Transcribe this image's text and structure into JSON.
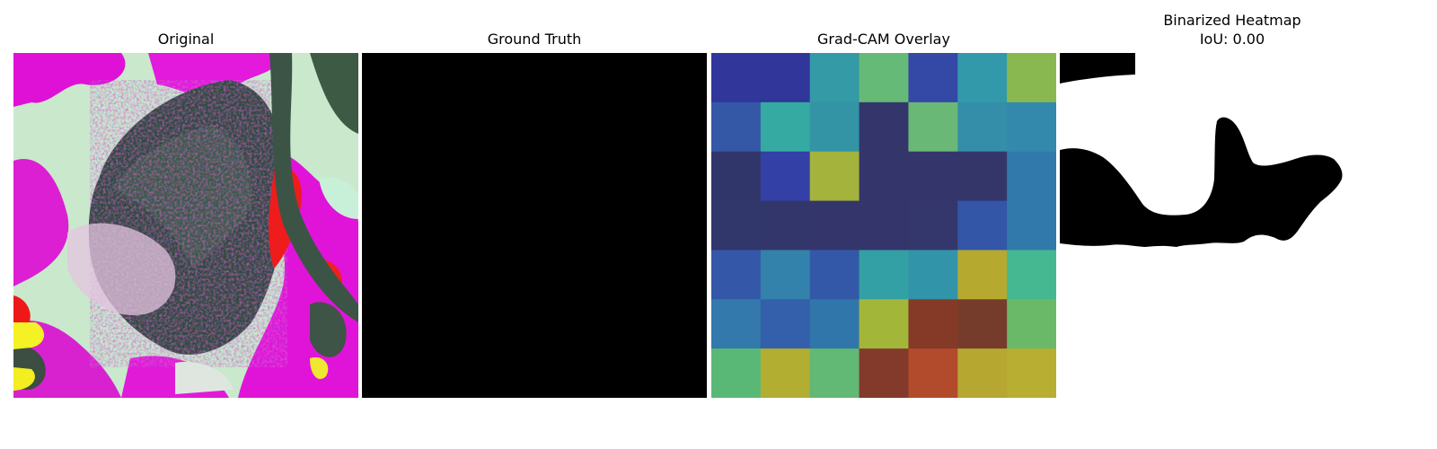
{
  "figure": {
    "panels": [
      {
        "id": "original",
        "title": "Original"
      },
      {
        "id": "ground-truth",
        "title": "Ground Truth"
      },
      {
        "id": "gradcam-overlay",
        "title": "Grad-CAM Overlay"
      },
      {
        "id": "binarized-heatmap",
        "title": "Binarized Heatmap",
        "subtitle": "IoU: 0.00"
      }
    ],
    "gradcam_grid": {
      "rows": 7,
      "cols": 7,
      "colors": [
        [
          "#31369b",
          "#30369a",
          "#339aa6",
          "#66ba78",
          "#3448a6",
          "#3299aa",
          "#89b851"
        ],
        [
          "#3458a6",
          "#35aaa2",
          "#3394a6",
          "#34366b",
          "#69b876",
          "#348da9",
          "#3289ac"
        ],
        [
          "#31366a",
          "#3340a5",
          "#a4b33b",
          "#34366b",
          "#34366b",
          "#34366a",
          "#3179ab"
        ],
        [
          "#31366b",
          "#33366b",
          "#34366b",
          "#34366b",
          "#34376b",
          "#3356a7",
          "#3279ab"
        ],
        [
          "#3457a7",
          "#3282ab",
          "#3358a8",
          "#33a0a6",
          "#3294a8",
          "#b6a930",
          "#45b891"
        ],
        [
          "#3379ab",
          "#345fab",
          "#3176aa",
          "#a2b739",
          "#843a26",
          "#763c2b",
          "#6ab969"
        ],
        [
          "#5ab877",
          "#b1ae31",
          "#62b875",
          "#833a2a",
          "#b14b2c",
          "#b6a731",
          "#b8ae31"
        ]
      ]
    },
    "ground_truth_fill": "#000000",
    "binarized_colors": {
      "foreground": "#000000",
      "background": "#ffffff"
    }
  }
}
